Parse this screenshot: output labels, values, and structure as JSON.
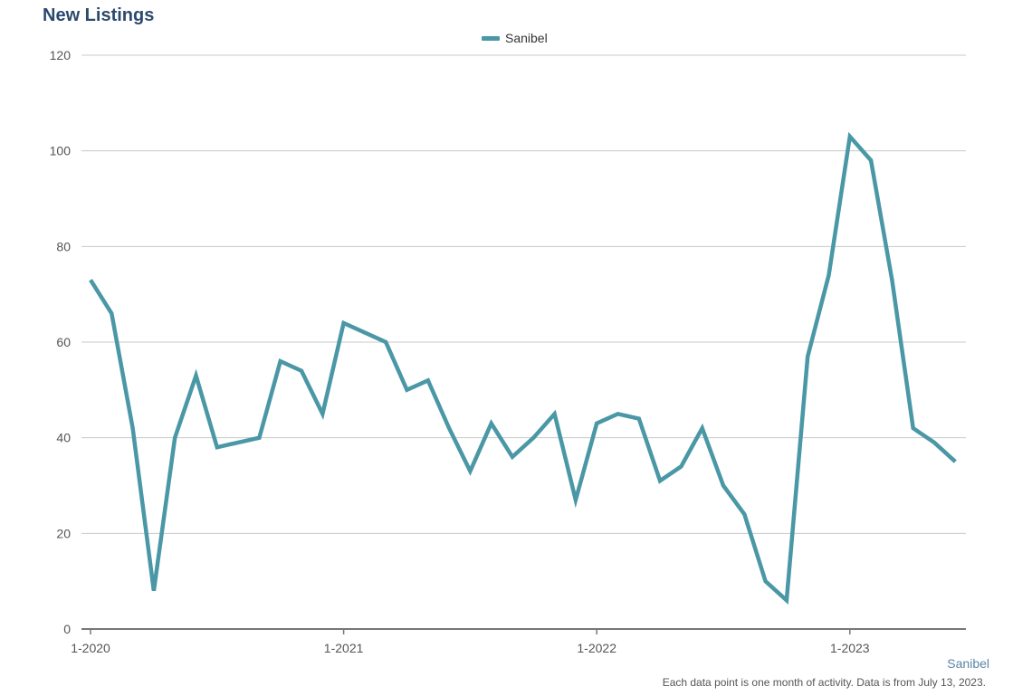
{
  "title": "New Listings",
  "legend_label": "Sanibel",
  "footnote_series": "Sanibel",
  "footnote": "Each data point is one month of activity. Data is from July 13, 2023.",
  "colors": {
    "line": "#4a97a6",
    "grid": "#c8c8c8",
    "axis": "#777777",
    "title": "#2c4a6e"
  },
  "chart_data": {
    "type": "line",
    "title": "New Listings",
    "xlabel": "",
    "ylabel": "",
    "ylim": [
      0,
      120
    ],
    "yticks": [
      0,
      20,
      40,
      60,
      80,
      100,
      120
    ],
    "grid": true,
    "legend_position": "top-center",
    "x_tick_labels": [
      "1-2020",
      "1-2021",
      "1-2022",
      "1-2023"
    ],
    "x": [
      "1-2020",
      "2-2020",
      "3-2020",
      "4-2020",
      "5-2020",
      "6-2020",
      "7-2020",
      "8-2020",
      "9-2020",
      "10-2020",
      "11-2020",
      "12-2020",
      "1-2021",
      "2-2021",
      "3-2021",
      "4-2021",
      "5-2021",
      "6-2021",
      "7-2021",
      "8-2021",
      "9-2021",
      "10-2021",
      "11-2021",
      "12-2021",
      "1-2022",
      "2-2022",
      "3-2022",
      "4-2022",
      "5-2022",
      "6-2022",
      "7-2022",
      "8-2022",
      "9-2022",
      "10-2022",
      "11-2022",
      "12-2022",
      "1-2023",
      "2-2023",
      "3-2023",
      "4-2023",
      "5-2023",
      "6-2023"
    ],
    "series": [
      {
        "name": "Sanibel",
        "values": [
          73,
          66,
          42,
          8,
          40,
          53,
          38,
          39,
          40,
          56,
          54,
          45,
          64,
          62,
          60,
          50,
          52,
          42,
          33,
          43,
          36,
          40,
          45,
          27,
          43,
          45,
          44,
          31,
          34,
          42,
          30,
          24,
          10,
          6,
          57,
          74,
          103,
          98,
          73,
          42,
          39,
          35
        ]
      }
    ]
  }
}
